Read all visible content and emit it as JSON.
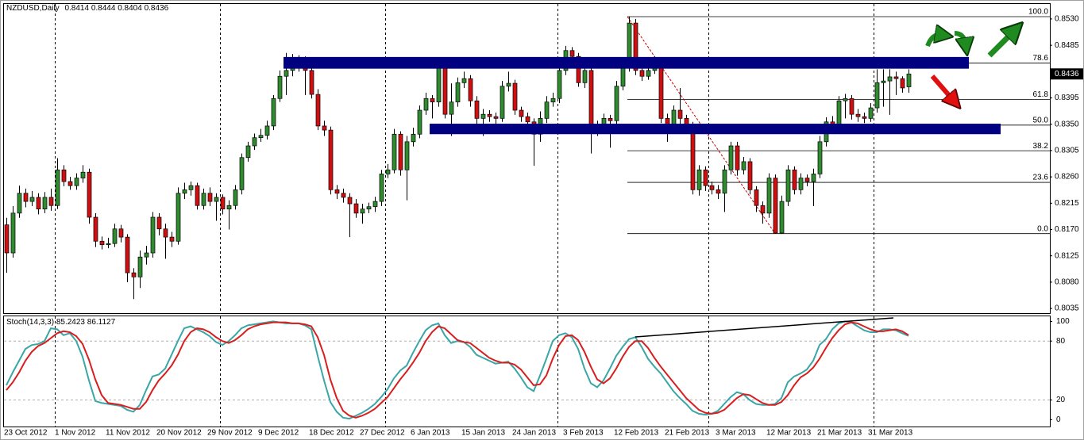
{
  "chart_data": {
    "type": "candlestick",
    "symbol": "NZDUSD,Daily",
    "ylim": [
      0.8027,
      0.8557
    ],
    "yticks": [
      {
        "value": 0.853,
        "label": "0.8530"
      },
      0.8485,
      0.8395,
      {
        "value": 0.835,
        "label": "0.8350"
      },
      0.8305,
      {
        "value": 0.826,
        "label": "0.8260"
      },
      0.8215,
      {
        "value": 0.817,
        "label": "0.8170"
      },
      0.8125,
      {
        "value": 0.808,
        "label": "0.8080"
      },
      0.8035
    ],
    "up_color": "#2e8b2e",
    "down_color": "#d01010",
    "categories": [
      "23 Oct 2012",
      null,
      null,
      null,
      null,
      null,
      null,
      null,
      "1 Nov 2012",
      null,
      null,
      null,
      null,
      null,
      null,
      null,
      "11 Nov 2012",
      null,
      null,
      null,
      null,
      null,
      null,
      null,
      "20 Nov 2012",
      null,
      null,
      null,
      null,
      null,
      null,
      null,
      "29 Nov 2012",
      null,
      null,
      null,
      null,
      null,
      null,
      null,
      "9 Dec 2012",
      null,
      null,
      null,
      null,
      null,
      null,
      null,
      "18 Dec 2012",
      null,
      null,
      null,
      null,
      null,
      null,
      null,
      "27 Dec 2012",
      null,
      null,
      null,
      null,
      null,
      null,
      null,
      "6 Jan 2013",
      null,
      null,
      null,
      null,
      null,
      null,
      null,
      "15 Jan 2013",
      null,
      null,
      null,
      null,
      null,
      null,
      null,
      "24 Jan 2013",
      null,
      null,
      null,
      null,
      null,
      null,
      null,
      "3 Feb 2013",
      null,
      null,
      null,
      null,
      null,
      null,
      null,
      "12 Feb 2013",
      null,
      null,
      null,
      null,
      null,
      null,
      null,
      "21 Feb 2013",
      null,
      null,
      null,
      null,
      null,
      null,
      null,
      "3 Mar 2013",
      null,
      null,
      null,
      null,
      null,
      null,
      null,
      "12 Mar 2013",
      null,
      null,
      null,
      null,
      null,
      null,
      null,
      "21 Mar 2013",
      null,
      null,
      null,
      null,
      null,
      null,
      null,
      "31 Mar 2013",
      null,
      null,
      null,
      null,
      null,
      null
    ],
    "open": [
      0.8178,
      0.813,
      0.8198,
      0.8232,
      0.8218,
      0.8225,
      0.8205,
      0.8225,
      0.8211,
      0.8272,
      0.8252,
      0.8245,
      0.8258,
      0.8268,
      0.8191,
      0.815,
      0.8144,
      0.8146,
      0.8171,
      0.8157,
      0.8096,
      0.8089,
      0.8123,
      0.813,
      0.8191,
      0.8171,
      0.8157,
      0.815,
      0.8232,
      0.8238,
      0.8245,
      0.8211,
      0.8232,
      0.8218,
      0.8225,
      0.8205,
      0.8211,
      0.8238,
      0.8293,
      0.8313,
      0.8327,
      0.8331,
      0.8347,
      0.8394,
      0.8432,
      0.8442,
      0.8449,
      0.8455,
      0.8442,
      0.8401,
      0.8347,
      0.834,
      0.8238,
      0.8232,
      0.8225,
      0.8214,
      0.8198,
      0.8205,
      0.8209,
      0.8218,
      0.8265,
      0.8272,
      0.8333,
      0.8272,
      0.832,
      0.8333,
      0.8374,
      0.8394,
      0.8388,
      0.8449,
      0.8367,
      0.8388,
      0.8421,
      0.8428,
      0.839,
      0.836,
      0.8367,
      0.8363,
      0.836,
      0.8415,
      0.842,
      0.8374,
      0.8363,
      0.8354,
      0.8333,
      0.836,
      0.8388,
      0.8394,
      0.8442,
      0.8476,
      0.8466,
      0.8421,
      0.8442,
      0.834,
      0.8347,
      0.836,
      0.8356,
      0.8415,
      0.8449,
      0.8523,
      0.8442,
      0.8432,
      0.8442,
      0.8455,
      0.836,
      0.8347,
      0.8374,
      0.836,
      0.8347,
      0.8238,
      0.8272,
      0.8245,
      0.8238,
      0.8232,
      0.8272,
      0.8313,
      0.8272,
      0.8286,
      0.8238,
      0.8211,
      0.8198,
      0.8258,
      0.8164,
      0.8218,
      0.8272,
      0.8238,
      0.8258,
      0.8252,
      0.8265,
      0.832,
      0.8354,
      0.835,
      0.839,
      0.8394,
      0.8367,
      0.8363,
      0.836,
      0.8378,
      0.8421,
      0.8424,
      0.8431,
      0.8428,
      0.8414
    ],
    "high": [
      0.819,
      0.821,
      0.8245,
      0.824,
      0.8236,
      0.8232,
      0.8234,
      0.824,
      0.8292,
      0.828,
      0.826,
      0.8266,
      0.828,
      0.8274,
      0.8198,
      0.8158,
      0.8156,
      0.818,
      0.8178,
      0.8162,
      0.8104,
      0.8134,
      0.8142,
      0.82,
      0.8198,
      0.818,
      0.8166,
      0.8242,
      0.825,
      0.8252,
      0.825,
      0.824,
      0.8242,
      0.8232,
      0.823,
      0.822,
      0.8246,
      0.83,
      0.832,
      0.8334,
      0.8342,
      0.8356,
      0.84,
      0.8442,
      0.8472,
      0.847,
      0.8468,
      0.8466,
      0.8448,
      0.841,
      0.8356,
      0.8346,
      0.8246,
      0.824,
      0.8232,
      0.8222,
      0.8214,
      0.8216,
      0.8226,
      0.8272,
      0.8282,
      0.8342,
      0.8338,
      0.833,
      0.8344,
      0.8382,
      0.8404,
      0.84,
      0.8456,
      0.8454,
      0.842,
      0.843,
      0.844,
      0.8434,
      0.8398,
      0.8376,
      0.8374,
      0.837,
      0.8424,
      0.844,
      0.8426,
      0.838,
      0.837,
      0.836,
      0.8372,
      0.8398,
      0.8404,
      0.845,
      0.8484,
      0.8482,
      0.8472,
      0.845,
      0.8448,
      0.8356,
      0.8368,
      0.8366,
      0.8424,
      0.8458,
      0.8534,
      0.853,
      0.845,
      0.8452,
      0.8466,
      0.8462,
      0.8368,
      0.8382,
      0.8412,
      0.8366,
      0.8354,
      0.828,
      0.8278,
      0.8252,
      0.8246,
      0.828,
      0.832,
      0.832,
      0.8294,
      0.8292,
      0.8244,
      0.8218,
      0.8266,
      0.8264,
      0.8228,
      0.828,
      0.8278,
      0.8266,
      0.8264,
      0.8274,
      0.833,
      0.8362,
      0.8364,
      0.8398,
      0.8402,
      0.84,
      0.8376,
      0.837,
      0.8386,
      0.8444,
      0.8444,
      0.8444,
      0.844,
      0.8432,
      0.8444
    ],
    "low": [
      0.8096,
      0.8122,
      0.819,
      0.8208,
      0.821,
      0.8196,
      0.8198,
      0.8202,
      0.8205,
      0.8244,
      0.8238,
      0.8238,
      0.825,
      0.818,
      0.814,
      0.8136,
      0.8138,
      0.814,
      0.8148,
      0.808,
      0.8051,
      0.807,
      0.811,
      0.8122,
      0.816,
      0.812,
      0.814,
      0.8144,
      0.8222,
      0.8228,
      0.8204,
      0.8204,
      0.821,
      0.8185,
      0.8196,
      0.817,
      0.8204,
      0.823,
      0.8286,
      0.8306,
      0.832,
      0.8324,
      0.834,
      0.8388,
      0.84,
      0.8432,
      0.844,
      0.84,
      0.8394,
      0.834,
      0.833,
      0.823,
      0.8222,
      0.8216,
      0.8157,
      0.819,
      0.818,
      0.8198,
      0.82,
      0.821,
      0.8258,
      0.8266,
      0.8262,
      0.822,
      0.8312,
      0.8326,
      0.8366,
      0.836,
      0.838,
      0.836,
      0.833,
      0.838,
      0.8412,
      0.838,
      0.835,
      0.833,
      0.8354,
      0.835,
      0.8354,
      0.8406,
      0.8366,
      0.8354,
      0.8346,
      0.8279,
      0.832,
      0.8352,
      0.838,
      0.8386,
      0.8434,
      0.8456,
      0.8414,
      0.8412,
      0.83,
      0.833,
      0.834,
      0.831,
      0.8348,
      0.8408,
      0.844,
      0.8434,
      0.8424,
      0.8426,
      0.8436,
      0.8352,
      0.832,
      0.834,
      0.835,
      0.8336,
      0.823,
      0.8228,
      0.8236,
      0.823,
      0.8222,
      0.82,
      0.8264,
      0.8262,
      0.8264,
      0.823,
      0.82,
      0.818,
      0.819,
      0.8163,
      0.8163,
      0.821,
      0.823,
      0.823,
      0.8244,
      0.821,
      0.8258,
      0.8312,
      0.8342,
      0.8344,
      0.836,
      0.8358,
      0.8354,
      0.8352,
      0.8354,
      0.837,
      0.838,
      0.8366,
      0.84,
      0.8404,
      0.8404
    ],
    "close": [
      0.813,
      0.8198,
      0.8232,
      0.8218,
      0.8225,
      0.8205,
      0.8225,
      0.8211,
      0.8272,
      0.8252,
      0.8245,
      0.8258,
      0.8268,
      0.8191,
      0.815,
      0.8144,
      0.8146,
      0.8171,
      0.8157,
      0.8096,
      0.8089,
      0.8123,
      0.813,
      0.8191,
      0.8171,
      0.8157,
      0.815,
      0.8232,
      0.8238,
      0.8245,
      0.8211,
      0.8232,
      0.8218,
      0.8225,
      0.8205,
      0.8211,
      0.8238,
      0.8293,
      0.8313,
      0.8327,
      0.8331,
      0.8347,
      0.8394,
      0.8432,
      0.8442,
      0.8449,
      0.8455,
      0.8442,
      0.8401,
      0.8347,
      0.834,
      0.8238,
      0.8232,
      0.8225,
      0.8214,
      0.8198,
      0.8205,
      0.8209,
      0.8218,
      0.8265,
      0.8272,
      0.8333,
      0.8272,
      0.832,
      0.8333,
      0.8374,
      0.8394,
      0.8388,
      0.8449,
      0.8367,
      0.8388,
      0.8421,
      0.8428,
      0.839,
      0.836,
      0.8367,
      0.8363,
      0.836,
      0.8415,
      0.842,
      0.8374,
      0.8363,
      0.8354,
      0.8333,
      0.836,
      0.8388,
      0.8394,
      0.8442,
      0.8476,
      0.8466,
      0.8421,
      0.8442,
      0.834,
      0.8347,
      0.836,
      0.8356,
      0.8415,
      0.8449,
      0.8523,
      0.8442,
      0.8432,
      0.8442,
      0.8455,
      0.836,
      0.8347,
      0.8374,
      0.836,
      0.8347,
      0.8238,
      0.8272,
      0.8245,
      0.8238,
      0.8232,
      0.8272,
      0.8313,
      0.8272,
      0.8286,
      0.8238,
      0.8211,
      0.8198,
      0.8258,
      0.8164,
      0.8218,
      0.8272,
      0.8238,
      0.8258,
      0.8252,
      0.8265,
      0.832,
      0.8354,
      0.835,
      0.839,
      0.8394,
      0.8367,
      0.8363,
      0.836,
      0.8378,
      0.8421,
      0.8424,
      0.8431,
      0.8428,
      0.8412,
      0.8436
    ],
    "zones": [
      {
        "top": 0.8465,
        "bottom": 0.8445
      },
      {
        "top": 0.8351,
        "bottom": 0.8333
      }
    ],
    "zone_color": "#000080",
    "fibonacci": {
      "high": 0.8534,
      "low": 0.8163,
      "color": "#000000",
      "trend_color": "#cc0000",
      "levels": [
        {
          "value": 100,
          "label": "100.0"
        },
        78.6,
        61.8,
        {
          "value": 50,
          "label": "50.0"
        },
        38.2,
        23.6,
        {
          "value": 0,
          "label": "0.0"
        }
      ]
    },
    "stochastic": {
      "name": "Stoch(14,3,3)",
      "ylim": [
        -7,
        106
      ],
      "yticks": [
        100,
        80,
        20,
        0
      ],
      "series": [
        {
          "color": "#3aa6a6",
          "values": [
            35,
            48,
            60,
            72,
            76,
            77,
            80,
            93,
            92,
            86,
            88,
            80,
            64,
            40,
            19,
            17,
            16,
            15,
            14,
            10,
            8,
            15,
            30,
            44,
            46,
            52,
            66,
            80,
            93,
            95,
            92,
            89,
            85,
            79,
            76,
            80,
            86,
            93,
            96,
            97,
            98,
            99,
            100,
            99,
            98,
            98,
            98,
            96,
            92,
            65,
            40,
            18,
            8,
            2,
            1,
            4,
            7,
            11,
            16,
            23,
            31,
            42,
            50,
            55,
            68,
            80,
            91,
            96,
            98,
            86,
            78,
            80,
            79,
            74,
            66,
            63,
            60,
            57,
            58,
            59,
            52,
            43,
            33,
            29,
            45,
            62,
            80,
            86,
            88,
            84,
            72,
            52,
            37,
            33,
            40,
            52,
            65,
            74,
            82,
            84,
            74,
            62,
            54,
            47,
            38,
            29,
            22,
            16,
            9,
            6,
            5,
            6,
            9,
            16,
            23,
            28,
            26,
            20,
            16,
            15,
            15,
            16,
            22,
            38,
            44,
            47,
            51,
            60,
            76,
            82,
            92,
            98,
            100,
            99,
            95,
            91,
            89,
            89,
            92,
            92,
            91,
            88,
            85.2423
          ]
        },
        {
          "color": "#d81e1e",
          "values": [
            30,
            38,
            48,
            60,
            69,
            75,
            78,
            83,
            88,
            90,
            89,
            85,
            77,
            61,
            41,
            25,
            17,
            16,
            15,
            13,
            11,
            11,
            18,
            30,
            40,
            47,
            55,
            66,
            80,
            89,
            93,
            92,
            89,
            84,
            80,
            78,
            81,
            86,
            92,
            95,
            97,
            98,
            99,
            99,
            99,
            98,
            98,
            97,
            95,
            84,
            66,
            41,
            22,
            9,
            4,
            2,
            4,
            7,
            11,
            17,
            23,
            32,
            41,
            49,
            58,
            68,
            80,
            89,
            95,
            93,
            87,
            81,
            79,
            78,
            73,
            68,
            63,
            60,
            58,
            58,
            56,
            51,
            43,
            35,
            36,
            45,
            62,
            76,
            85,
            86,
            81,
            69,
            54,
            41,
            37,
            42,
            52,
            64,
            74,
            80,
            80,
            73,
            63,
            54,
            46,
            38,
            30,
            22,
            16,
            10,
            7,
            6,
            7,
            10,
            16,
            22,
            26,
            25,
            21,
            17,
            15,
            15,
            18,
            25,
            35,
            43,
            47,
            53,
            62,
            73,
            83,
            91,
            97,
            99,
            98,
            95,
            92,
            90,
            90,
            91,
            92,
            90,
            86.1127
          ]
        }
      ]
    }
  }
}
